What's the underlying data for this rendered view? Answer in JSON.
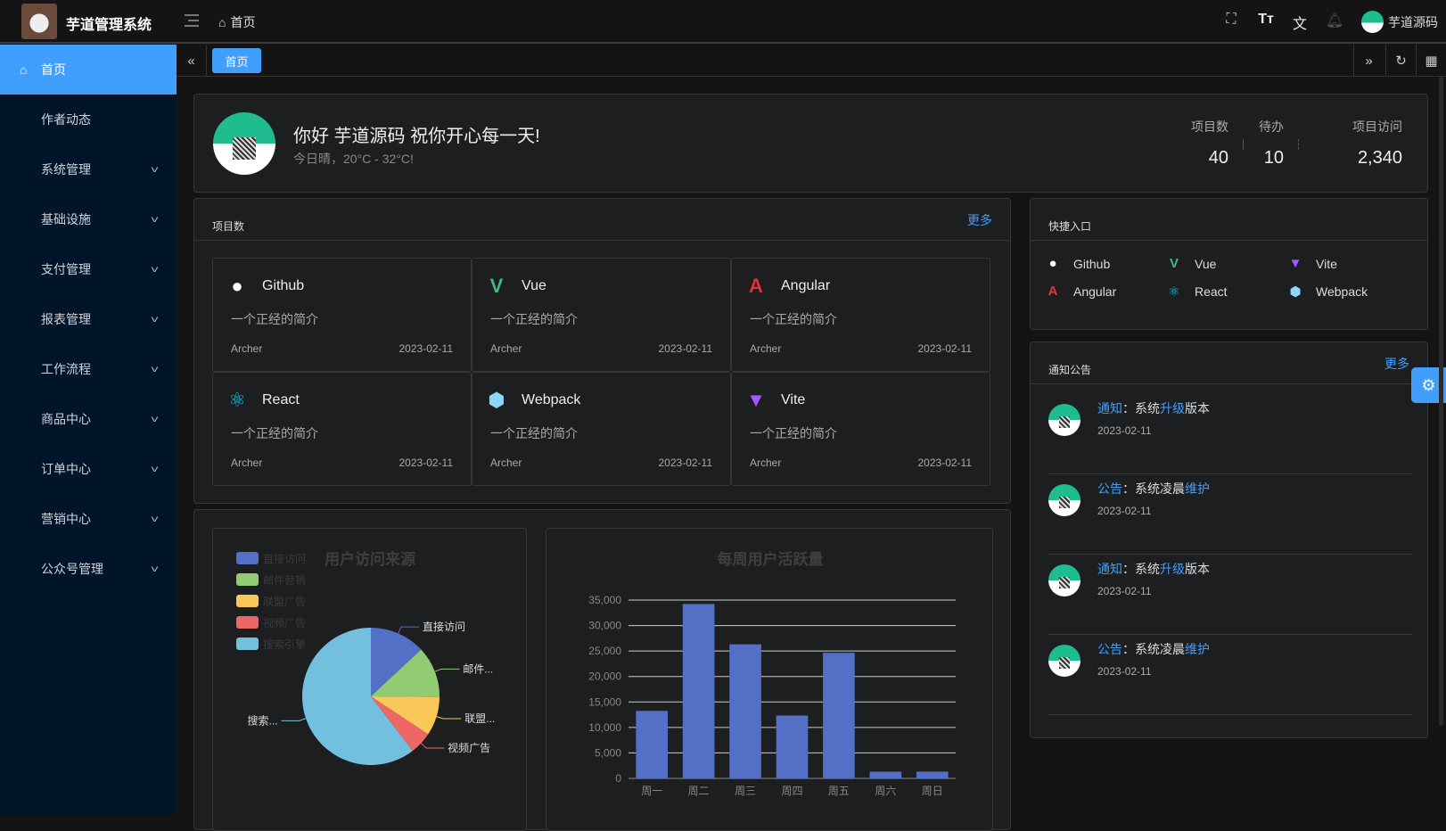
{
  "app": {
    "title": "芋道管理系统",
    "breadcrumb": "首页",
    "username": "芋道源码"
  },
  "header_icons": [
    "fullscreen-icon",
    "font-size-icon",
    "translate-icon",
    "bell-icon"
  ],
  "sidebar": {
    "items": [
      {
        "label": "首页",
        "active": true,
        "icon": "home-icon"
      },
      {
        "label": "作者动态"
      },
      {
        "label": "系统管理",
        "expandable": true
      },
      {
        "label": "基础设施",
        "expandable": true
      },
      {
        "label": "支付管理",
        "expandable": true
      },
      {
        "label": "报表管理",
        "expandable": true
      },
      {
        "label": "工作流程",
        "expandable": true
      },
      {
        "label": "商品中心",
        "expandable": true
      },
      {
        "label": "订单中心",
        "expandable": true
      },
      {
        "label": "营销中心",
        "expandable": true
      },
      {
        "label": "公众号管理",
        "expandable": true
      }
    ]
  },
  "tabs": [
    {
      "label": "首页",
      "active": true
    }
  ],
  "welcome": {
    "greeting": "你好 芋道源码 祝你开心每一天!",
    "weather": "今日晴，20°C - 32°C!",
    "stats": [
      {
        "label": "项目数",
        "value": "40"
      },
      {
        "label": "待办",
        "value": "10"
      },
      {
        "label": "项目访问",
        "value": "2,340"
      }
    ]
  },
  "projects": {
    "title": "项目数",
    "more": "更多",
    "items": [
      {
        "name": "Github",
        "icon": "github-icon",
        "desc": "一个正经的简介",
        "author": "Archer",
        "date": "2023-02-11"
      },
      {
        "name": "Vue",
        "icon": "vue-icon",
        "desc": "一个正经的简介",
        "author": "Archer",
        "date": "2023-02-11"
      },
      {
        "name": "Angular",
        "icon": "angular-icon",
        "desc": "一个正经的简介",
        "author": "Archer",
        "date": "2023-02-11"
      },
      {
        "name": "React",
        "icon": "react-icon",
        "desc": "一个正经的简介",
        "author": "Archer",
        "date": "2023-02-11"
      },
      {
        "name": "Webpack",
        "icon": "webpack-icon",
        "desc": "一个正经的简介",
        "author": "Archer",
        "date": "2023-02-11"
      },
      {
        "name": "Vite",
        "icon": "vite-icon",
        "desc": "一个正经的简介",
        "author": "Archer",
        "date": "2023-02-11"
      }
    ]
  },
  "shortcuts": {
    "title": "快捷入口",
    "items": [
      {
        "name": "Github",
        "icon": "github-icon"
      },
      {
        "name": "Vue",
        "icon": "vue-icon"
      },
      {
        "name": "Vite",
        "icon": "vite-icon"
      },
      {
        "name": "Angular",
        "icon": "angular-icon"
      },
      {
        "name": "React",
        "icon": "react-icon"
      },
      {
        "name": "Webpack",
        "icon": "webpack-icon"
      }
    ]
  },
  "notices": {
    "title": "通知公告",
    "more": "更多",
    "items": [
      {
        "type": "通知",
        "sep": "：",
        "pre": "系统",
        "hl": "升级",
        "post": "版本",
        "date": "2023-02-11"
      },
      {
        "type": "公告",
        "sep": "：",
        "pre": "系统凌晨",
        "hl": "维护",
        "post": "",
        "date": "2023-02-11"
      },
      {
        "type": "通知",
        "sep": "：",
        "pre": "系统",
        "hl": "升级",
        "post": "版本",
        "date": "2023-02-11"
      },
      {
        "type": "公告",
        "sep": "：",
        "pre": "系统凌晨",
        "hl": "维护",
        "post": "",
        "date": "2023-02-11"
      }
    ]
  },
  "colors": {
    "accent": "#409eff",
    "sidebar": "#001529"
  },
  "chart_data": [
    {
      "type": "pie",
      "title": "用户访问来源",
      "legend_position": "top-left",
      "categories": [
        "直接访问",
        "邮件营销",
        "联盟广告",
        "视频广告",
        "搜索引擎"
      ],
      "values": [
        335,
        310,
        234,
        135,
        1548
      ],
      "slice_labels": [
        "直接访问",
        "邮件...",
        "联盟...",
        "视频广告",
        "搜索..."
      ],
      "colors": [
        "#5470c6",
        "#91cc75",
        "#fac858",
        "#ee6666",
        "#73c0de"
      ]
    },
    {
      "type": "bar",
      "title": "每周用户活跃量",
      "categories": [
        "周一",
        "周二",
        "周三",
        "周四",
        "周五",
        "周六",
        "周日"
      ],
      "values": [
        13253,
        34235,
        26321,
        12340,
        24643,
        1322,
        1324
      ],
      "yticks": [
        "0",
        "5,000",
        "10,000",
        "15,000",
        "20,000",
        "25,000",
        "30,000",
        "35,000"
      ],
      "ylim": [
        0,
        35000
      ],
      "grid": true,
      "color": "#5470c6"
    }
  ]
}
